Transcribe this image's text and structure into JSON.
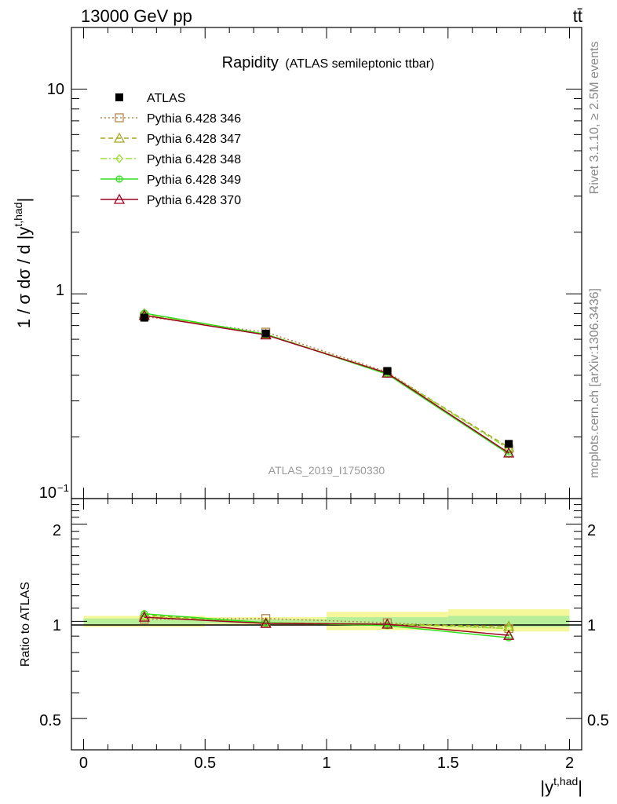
{
  "header": {
    "left": "13000 GeV pp",
    "right": "tt̄"
  },
  "side_text": {
    "rivet": "Rivet 3.1.10, ≥ 2.5M events",
    "mcplots": "mcplots.cern.ch [arXiv:1306.3436]"
  },
  "watermark": "ATLAS_2019_I1750330",
  "chart_data": {
    "type": "line",
    "title": "Rapidity",
    "subtitle": "(ATLAS semileptonic ttbar)",
    "xlabel": "|y",
    "xlabel_sup": "t,had",
    "xlabel_end": "|",
    "ylabel": "1 / σ dσ / d |y",
    "ylabel_sup": "t,had",
    "ylabel_end": "|",
    "xlim": [
      -0.05,
      2.05
    ],
    "ylim": [
      0.1,
      20
    ],
    "yscale": "log",
    "x_ticks": [
      "0",
      "0.5",
      "1",
      "1.5",
      "2"
    ],
    "y_ticks": [
      "10",
      "1",
      "10"
    ],
    "y_tick_exp": "−1",
    "x": [
      0.25,
      0.75,
      1.25,
      1.75
    ],
    "series": [
      {
        "name": "ATLAS",
        "values": [
          0.765,
          0.64,
          0.42,
          0.185
        ],
        "color": "#000000",
        "marker": "square-filled",
        "line": "none"
      },
      {
        "name": "Pythia 6.428 346",
        "values": [
          0.775,
          0.65,
          0.415,
          0.175
        ],
        "color": "#b5854b",
        "marker": "square-open",
        "line": "dotted"
      },
      {
        "name": "Pythia 6.428 347",
        "values": [
          0.8,
          0.635,
          0.41,
          0.178
        ],
        "color": "#a0a820",
        "marker": "triangle-open",
        "line": "dashed"
      },
      {
        "name": "Pythia 6.428 348",
        "values": [
          0.79,
          0.635,
          0.41,
          0.175
        ],
        "color": "#98e030",
        "marker": "diamond-open",
        "line": "dashdot"
      },
      {
        "name": "Pythia 6.428 349",
        "values": [
          0.805,
          0.635,
          0.405,
          0.165
        ],
        "color": "#30e020",
        "marker": "circle-cross",
        "line": "solid"
      },
      {
        "name": "Pythia 6.428 370",
        "values": [
          0.785,
          0.63,
          0.41,
          0.167
        ],
        "color": "#a00020",
        "marker": "triangle-open",
        "line": "solid"
      }
    ],
    "ratio": {
      "ylabel": "Ratio to ATLAS",
      "ylim": [
        0.4,
        2.4
      ],
      "y_ticks": [
        "2",
        "1",
        "0.5"
      ],
      "band_yellow": [
        {
          "x0": 0.0,
          "x1": 0.5,
          "lo": 0.96,
          "hi": 1.04
        },
        {
          "x0": 0.5,
          "x1": 1.0,
          "lo": 0.97,
          "hi": 1.03
        },
        {
          "x0": 1.0,
          "x1": 1.5,
          "lo": 0.94,
          "hi": 1.07
        },
        {
          "x0": 1.5,
          "x1": 2.0,
          "lo": 0.93,
          "hi": 1.09
        }
      ],
      "band_green": [
        {
          "x0": 0.0,
          "x1": 0.5,
          "lo": 0.98,
          "hi": 1.02
        },
        {
          "x0": 0.5,
          "x1": 1.0,
          "lo": 0.985,
          "hi": 1.015
        },
        {
          "x0": 1.0,
          "x1": 1.5,
          "lo": 0.97,
          "hi": 1.03
        },
        {
          "x0": 1.5,
          "x1": 2.0,
          "lo": 0.96,
          "hi": 1.04
        }
      ],
      "series_values": [
        [
          1.0,
          1.0,
          1.0,
          1.0
        ],
        [
          1.015,
          1.02,
          0.99,
          0.95
        ],
        [
          1.045,
          0.99,
          0.98,
          0.965
        ],
        [
          1.035,
          0.99,
          0.98,
          0.95
        ],
        [
          1.055,
          0.99,
          0.97,
          0.89
        ],
        [
          1.03,
          0.985,
          0.98,
          0.905
        ]
      ]
    }
  }
}
